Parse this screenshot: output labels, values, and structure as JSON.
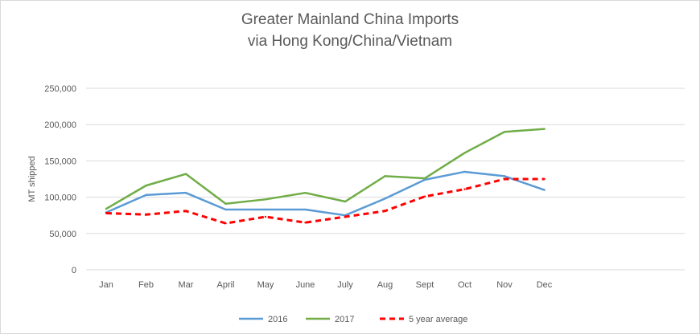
{
  "chart_data": {
    "type": "line",
    "title_line1": "Greater Mainland China Imports",
    "title_line2": "via Hong Kong/China/Vietnam",
    "xlabel": "",
    "ylabel": "MT shipped",
    "ylim": [
      0,
      250000
    ],
    "yticks": [
      0,
      50000,
      100000,
      150000,
      200000,
      250000
    ],
    "ytick_labels": [
      "0",
      "50,000",
      "100,000",
      "150,000",
      "200,000",
      "250,000"
    ],
    "categories": [
      "Jan",
      "Feb",
      "Mar",
      "April",
      "May",
      "June",
      "July",
      "Aug",
      "Sept",
      "Oct",
      "Nov",
      "Dec"
    ],
    "grid": true,
    "legend_position": "bottom",
    "series": [
      {
        "name": "2016",
        "color": "#5b9bd5",
        "dashed": false,
        "values": [
          79000,
          103000,
          106000,
          83000,
          83000,
          83000,
          75000,
          98000,
          124000,
          135000,
          129000,
          110000
        ]
      },
      {
        "name": "2017",
        "color": "#70ad47",
        "dashed": false,
        "values": [
          84000,
          116000,
          132000,
          91000,
          97000,
          106000,
          94000,
          129000,
          126000,
          161000,
          190000,
          194000
        ]
      },
      {
        "name": "5 year average",
        "color": "#ff0000",
        "dashed": true,
        "values": [
          78000,
          76000,
          81000,
          64000,
          73000,
          65000,
          73000,
          81000,
          101000,
          111000,
          125000,
          125000
        ]
      }
    ]
  }
}
